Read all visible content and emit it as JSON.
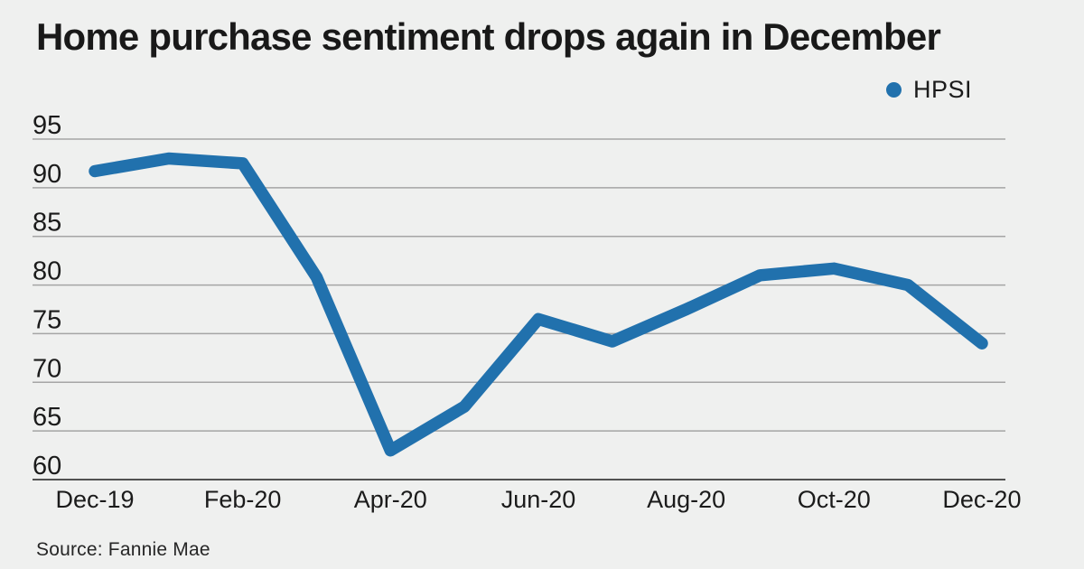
{
  "page": {
    "title": "Home purchase sentiment drops again in December",
    "source": "Source: Fannie Mae",
    "background": "#eff0ef"
  },
  "legend": {
    "label": "HPSI",
    "marker": "dot",
    "color": "#2171ad"
  },
  "colors": {
    "line": "#2171ad",
    "grid": "#a5a5a5",
    "axis": "#515151",
    "text": "#1b1b1b"
  },
  "chart_data": {
    "type": "line",
    "title": "Home purchase sentiment drops again in December",
    "source": "Source: Fannie Mae",
    "categories": [
      "Dec-19",
      "Jan-20",
      "Feb-20",
      "Mar-20",
      "Apr-20",
      "May-20",
      "Jun-20",
      "Jul-20",
      "Aug-20",
      "Sep-20",
      "Oct-20",
      "Nov-20",
      "Dec-20"
    ],
    "series": [
      {
        "name": "HPSI",
        "color": "#2171ad",
        "values": [
          91.7,
          93.0,
          92.5,
          80.8,
          63.0,
          67.5,
          76.5,
          74.2,
          77.5,
          81.0,
          81.7,
          80.0,
          74.0
        ]
      }
    ],
    "x_tick_labels": [
      "Dec-19",
      "Feb-20",
      "Apr-20",
      "Jun-20",
      "Aug-20",
      "Oct-20",
      "Dec-20"
    ],
    "x_tick_every": 2,
    "y_ticks": [
      60,
      65,
      70,
      75,
      80,
      85,
      90,
      95
    ],
    "ylim": [
      60,
      95
    ],
    "xlabel": "",
    "ylabel": "",
    "grid": "horizontal",
    "legend_position": "top-right"
  }
}
